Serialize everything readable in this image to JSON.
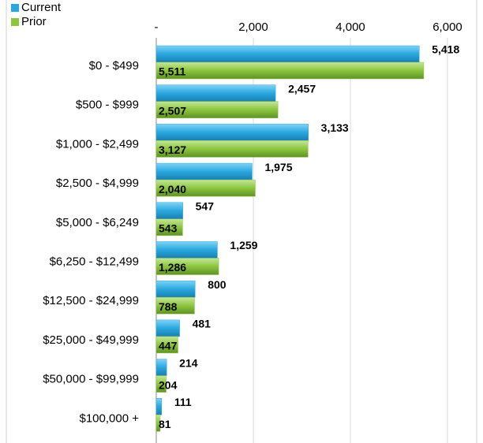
{
  "chart_data": {
    "type": "bar",
    "orientation": "horizontal",
    "categories": [
      "$0 - $499",
      "$500 - $999",
      "$1,000 - $2,499",
      "$2,500 - $4,999",
      "$5,000 - $6,249",
      "$6,250 - $12,499",
      "$12,500 - $24,999",
      "$25,000 - $49,999",
      "$50,000 - $99,999",
      "$100,000 +"
    ],
    "series": [
      {
        "name": "Current",
        "color": "#29a8df",
        "values": [
          5418,
          2457,
          3133,
          1975,
          547,
          1259,
          800,
          481,
          214,
          111
        ],
        "value_labels": [
          "5,418",
          "2,457",
          "3,133",
          "1,975",
          "547",
          "1,259",
          "800",
          "481",
          "214",
          "111"
        ]
      },
      {
        "name": "Prior",
        "color": "#8cc63e",
        "values": [
          5511,
          2507,
          3127,
          2040,
          543,
          1286,
          788,
          447,
          204,
          81
        ],
        "value_labels": [
          "5,511",
          "2,507",
          "3,127",
          "2,040",
          "543",
          "1,286",
          "788",
          "447",
          "204",
          "81"
        ]
      }
    ],
    "xlim": [
      0,
      6000
    ],
    "xticks": [
      {
        "value": 0,
        "label": "-"
      },
      {
        "value": 2000,
        "label": "2,000"
      },
      {
        "value": 4000,
        "label": "4,000"
      },
      {
        "value": 6000,
        "label": "6,000"
      }
    ],
    "grid": true,
    "legend": "top-left"
  }
}
